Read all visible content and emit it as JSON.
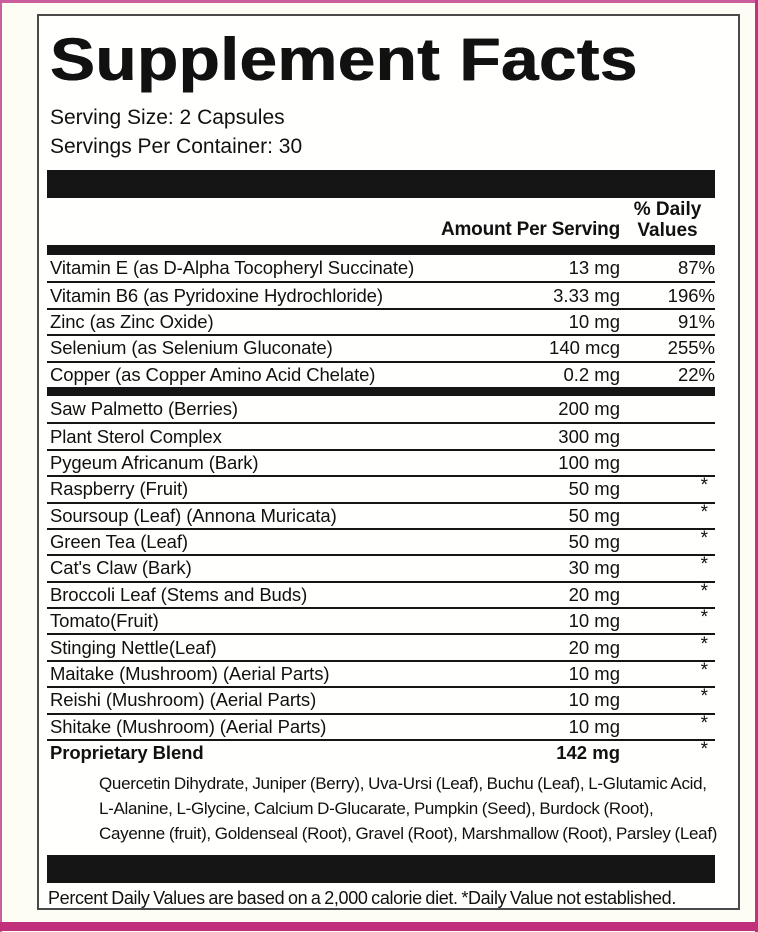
{
  "page": {
    "background": "#FDFCF5",
    "accent_pink": "#C1307A",
    "bar_color": "#151515"
  },
  "label": {
    "title": "Supplement Facts",
    "serving_size": "Serving Size: 2 Capsules",
    "servings_per_container": "Servings Per Container: 30",
    "columns": {
      "amount_header": "Amount Per Serving",
      "dv_header_line1": "% Daily",
      "dv_header_line2": "Values"
    },
    "rows": [
      {
        "name": "Vitamin E (as D-Alpha Tocopheryl Succinate)",
        "amount": "13 mg",
        "dv": "87%"
      },
      {
        "name": "Vitamin B6 (as Pyridoxine Hydrochloride)",
        "amount": "3.33 mg",
        "dv": "196%"
      },
      {
        "name": "Zinc (as Zinc Oxide)",
        "amount": "10 mg",
        "dv": "91%"
      },
      {
        "name": "Selenium (as Selenium Gluconate)",
        "amount": "140 mcg",
        "dv": "255%"
      },
      {
        "name": "Copper (as Copper Amino Acid Chelate)",
        "amount": "0.2 mg",
        "dv": "22%",
        "section_break_after": true
      },
      {
        "name": "Saw Palmetto (Berries)",
        "amount": "200 mg",
        "dv": ""
      },
      {
        "name": "Plant Sterol Complex",
        "amount": "300 mg",
        "dv": ""
      },
      {
        "name": "Pygeum Africanum (Bark)",
        "amount": "100 mg",
        "dv": ""
      },
      {
        "name": "Raspberry (Fruit)",
        "amount": "50 mg",
        "dv": "*"
      },
      {
        "name": "Soursoup (Leaf) (Annona Muricata)",
        "amount": "50 mg",
        "dv": "*"
      },
      {
        "name": "Green Tea (Leaf)",
        "amount": "50 mg",
        "dv": "*"
      },
      {
        "name": "Cat's Claw (Bark)",
        "amount": "30 mg",
        "dv": "*"
      },
      {
        "name": "Broccoli Leaf (Stems and Buds)",
        "amount": "20 mg",
        "dv": "*"
      },
      {
        "name": "Tomato(Fruit)",
        "amount": "10 mg",
        "dv": "*"
      },
      {
        "name": "Stinging Nettle(Leaf)",
        "amount": "20 mg",
        "dv": "*"
      },
      {
        "name": "Maitake (Mushroom) (Aerial Parts)",
        "amount": "10 mg",
        "dv": "*"
      },
      {
        "name": "Reishi (Mushroom) (Aerial Parts)",
        "amount": "10 mg",
        "dv": "*"
      },
      {
        "name": "Shitake (Mushroom) (Aerial Parts)",
        "amount": "10 mg",
        "dv": "*"
      },
      {
        "name": "Proprietary Blend",
        "amount": "142 mg",
        "dv": "*",
        "bold": true
      }
    ],
    "blend_lines": [
      "Quercetin Dihydrate, Juniper (Berry), Uva-Ursi (Leaf), Buchu (Leaf), L-Glutamic Acid,",
      "L-Alanine, L-Glycine, Calcium D-Glucarate, Pumpkin (Seed), Burdock (Root),",
      "Cayenne (fruit), Goldenseal (Root), Gravel (Root), Marshmallow (Root), Parsley (Leaf)"
    ],
    "footnote": "Percent Daily Values are based on a 2,000 calorie diet. *Daily Value not established."
  }
}
